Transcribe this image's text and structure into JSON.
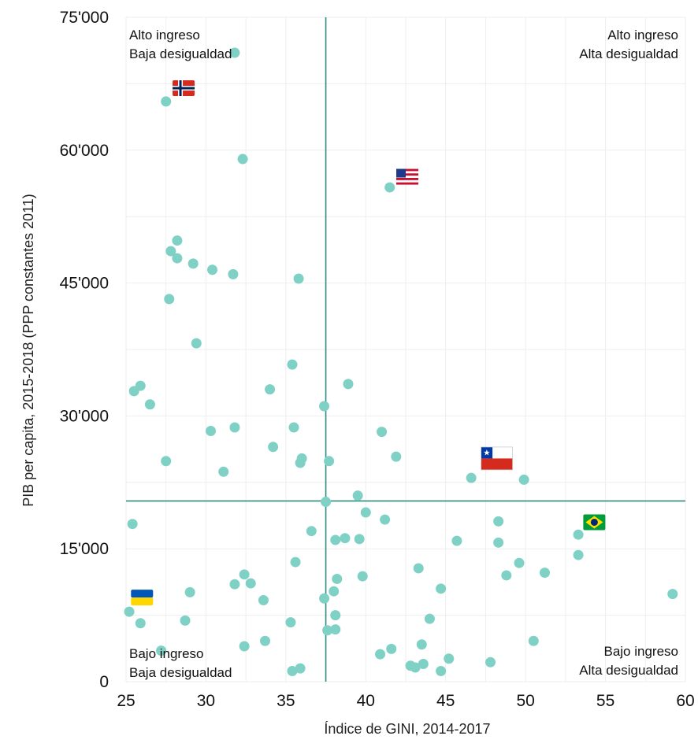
{
  "chart_data": {
    "type": "scatter",
    "title": "",
    "xlabel": "Índice de GINI, 2014-2017",
    "ylabel": "PIB per capita, 2015-2018 (PPP constantes 2011)",
    "xlim": [
      25,
      60
    ],
    "ylim": [
      0,
      75000
    ],
    "x_ticks": [
      25,
      30,
      35,
      40,
      45,
      50,
      55,
      60
    ],
    "x_tick_labels": [
      "25",
      "30",
      "35",
      "40",
      "45",
      "50",
      "55",
      "60"
    ],
    "y_ticks": [
      0,
      15000,
      30000,
      45000,
      60000,
      75000
    ],
    "y_tick_labels": [
      "0",
      "15'000",
      "30'000",
      "45'000",
      "60'000",
      "75'000"
    ],
    "grid": true,
    "reference_lines": {
      "x": 37.5,
      "y": 20400
    },
    "quadrant_labels": {
      "top_left": [
        "Alto ingreso",
        "Baja desigualdad"
      ],
      "top_right": [
        "Alto ingreso",
        "Alta desigualdad"
      ],
      "bottom_left": [
        "Bajo ingreso",
        "Baja desigualdad"
      ],
      "bottom_right": [
        "Bajo ingreso",
        "Alta desigualdad"
      ]
    },
    "point_color": "#7fd1c5",
    "line_color": "#2e8b80",
    "flags": [
      {
        "country": "norway",
        "x": 28.6,
        "y": 67000
      },
      {
        "country": "usa",
        "x": 42.6,
        "y": 57000
      },
      {
        "country": "chile",
        "x": 48.2,
        "y": 25200
      },
      {
        "country": "brazil",
        "x": 54.3,
        "y": 18000
      },
      {
        "country": "ukraine",
        "x": 26.0,
        "y": 9500
      }
    ],
    "points": [
      {
        "x": 27.5,
        "y": 65500
      },
      {
        "x": 31.8,
        "y": 71000
      },
      {
        "x": 32.3,
        "y": 59000
      },
      {
        "x": 41.5,
        "y": 55800
      },
      {
        "x": 28.2,
        "y": 49800
      },
      {
        "x": 27.8,
        "y": 48600
      },
      {
        "x": 28.2,
        "y": 47800
      },
      {
        "x": 29.2,
        "y": 47200
      },
      {
        "x": 30.4,
        "y": 46500
      },
      {
        "x": 31.7,
        "y": 46000
      },
      {
        "x": 35.8,
        "y": 45500
      },
      {
        "x": 27.7,
        "y": 43200
      },
      {
        "x": 29.4,
        "y": 38200
      },
      {
        "x": 35.4,
        "y": 35800
      },
      {
        "x": 25.5,
        "y": 32800
      },
      {
        "x": 25.9,
        "y": 33400
      },
      {
        "x": 26.5,
        "y": 31300
      },
      {
        "x": 34.0,
        "y": 33000
      },
      {
        "x": 38.9,
        "y": 33600
      },
      {
        "x": 37.4,
        "y": 31100
      },
      {
        "x": 30.3,
        "y": 28300
      },
      {
        "x": 31.8,
        "y": 28700
      },
      {
        "x": 35.5,
        "y": 28700
      },
      {
        "x": 41.0,
        "y": 28200
      },
      {
        "x": 34.2,
        "y": 26500
      },
      {
        "x": 36.0,
        "y": 25200
      },
      {
        "x": 35.9,
        "y": 24700
      },
      {
        "x": 37.7,
        "y": 24900
      },
      {
        "x": 41.9,
        "y": 25400
      },
      {
        "x": 27.5,
        "y": 24900
      },
      {
        "x": 31.1,
        "y": 23700
      },
      {
        "x": 46.6,
        "y": 23000
      },
      {
        "x": 49.9,
        "y": 22800
      },
      {
        "x": 39.5,
        "y": 21000
      },
      {
        "x": 37.5,
        "y": 20300
      },
      {
        "x": 40.0,
        "y": 19100
      },
      {
        "x": 41.2,
        "y": 18300
      },
      {
        "x": 48.3,
        "y": 18100
      },
      {
        "x": 25.4,
        "y": 17800
      },
      {
        "x": 36.6,
        "y": 17000
      },
      {
        "x": 53.3,
        "y": 16600
      },
      {
        "x": 38.1,
        "y": 16000
      },
      {
        "x": 38.7,
        "y": 16200
      },
      {
        "x": 39.6,
        "y": 16100
      },
      {
        "x": 45.7,
        "y": 15900
      },
      {
        "x": 48.3,
        "y": 15700
      },
      {
        "x": 53.3,
        "y": 14300
      },
      {
        "x": 35.6,
        "y": 13500
      },
      {
        "x": 49.6,
        "y": 13400
      },
      {
        "x": 43.3,
        "y": 12800
      },
      {
        "x": 51.2,
        "y": 12300
      },
      {
        "x": 48.8,
        "y": 12000
      },
      {
        "x": 32.4,
        "y": 12100
      },
      {
        "x": 39.8,
        "y": 11900
      },
      {
        "x": 38.2,
        "y": 11600
      },
      {
        "x": 31.8,
        "y": 11000
      },
      {
        "x": 32.8,
        "y": 11100
      },
      {
        "x": 29.0,
        "y": 10100
      },
      {
        "x": 38.0,
        "y": 10200
      },
      {
        "x": 44.7,
        "y": 10500
      },
      {
        "x": 59.2,
        "y": 9900
      },
      {
        "x": 37.4,
        "y": 9400
      },
      {
        "x": 33.6,
        "y": 9200
      },
      {
        "x": 25.2,
        "y": 7900
      },
      {
        "x": 38.1,
        "y": 7500
      },
      {
        "x": 44.0,
        "y": 7100
      },
      {
        "x": 25.9,
        "y": 6600
      },
      {
        "x": 28.7,
        "y": 6900
      },
      {
        "x": 35.3,
        "y": 6700
      },
      {
        "x": 37.6,
        "y": 5800
      },
      {
        "x": 38.1,
        "y": 5900
      },
      {
        "x": 50.5,
        "y": 4600
      },
      {
        "x": 33.7,
        "y": 4600
      },
      {
        "x": 43.5,
        "y": 4200
      },
      {
        "x": 32.4,
        "y": 4000
      },
      {
        "x": 27.2,
        "y": 3500
      },
      {
        "x": 41.6,
        "y": 3700
      },
      {
        "x": 40.9,
        "y": 3100
      },
      {
        "x": 45.2,
        "y": 2600
      },
      {
        "x": 47.8,
        "y": 2200
      },
      {
        "x": 43.6,
        "y": 2000
      },
      {
        "x": 42.8,
        "y": 1800
      },
      {
        "x": 43.1,
        "y": 1600
      },
      {
        "x": 35.4,
        "y": 1200
      },
      {
        "x": 35.9,
        "y": 1500
      },
      {
        "x": 44.7,
        "y": 1200
      }
    ]
  }
}
